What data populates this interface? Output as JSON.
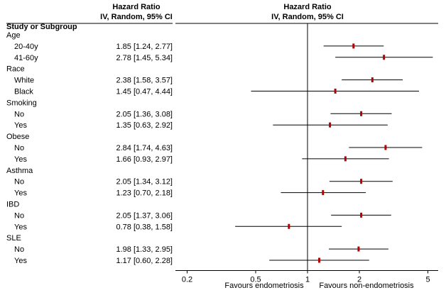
{
  "headers": {
    "study": "Study or Subgroup",
    "hr_title": "Hazard Ratio",
    "hr_sub": "IV, Random, 95% CI",
    "plot_title": "Hazard Ratio",
    "plot_sub": "IV, Random, 95% CI"
  },
  "colors": {
    "point": "#b40000",
    "line": "#000000",
    "axis": "#000000"
  },
  "chart_data": {
    "type": "forest",
    "x_scale": "log",
    "xlim": [
      0.15,
      6
    ],
    "null_line": 1,
    "x_ticks": [
      {
        "value": 0.2,
        "label": "0.2"
      },
      {
        "value": 0.5,
        "label": "0.5"
      },
      {
        "value": 1,
        "label": "1"
      },
      {
        "value": 2,
        "label": "2"
      },
      {
        "value": 5,
        "label": "5"
      }
    ],
    "favours_left": "Favours endometriosis",
    "favours_right": "Favours non-endometriosis",
    "groups": [
      {
        "name": "Age",
        "rows": [
          {
            "label": "20-40y",
            "ci_text": "1.85 [1.24, 2.77]",
            "hr": 1.85,
            "lo": 1.24,
            "hi": 2.77
          },
          {
            "label": "41-60y",
            "ci_text": "2.78 [1.45, 5.34]",
            "hr": 2.78,
            "lo": 1.45,
            "hi": 5.34
          }
        ]
      },
      {
        "name": "Race",
        "rows": [
          {
            "label": "White",
            "ci_text": "2.38 [1.58, 3.57]",
            "hr": 2.38,
            "lo": 1.58,
            "hi": 3.57
          },
          {
            "label": "Black",
            "ci_text": "1.45 [0.47, 4.44]",
            "hr": 1.45,
            "lo": 0.47,
            "hi": 4.44
          }
        ]
      },
      {
        "name": "Smoking",
        "rows": [
          {
            "label": "No",
            "ci_text": "2.05 [1.36, 3.08]",
            "hr": 2.05,
            "lo": 1.36,
            "hi": 3.08
          },
          {
            "label": "Yes",
            "ci_text": "1.35 [0.63, 2.92]",
            "hr": 1.35,
            "lo": 0.63,
            "hi": 2.92
          }
        ]
      },
      {
        "name": "Obese",
        "rows": [
          {
            "label": "No",
            "ci_text": "2.84 [1.74, 4.63]",
            "hr": 2.84,
            "lo": 1.74,
            "hi": 4.63
          },
          {
            "label": "Yes",
            "ci_text": "1.66 [0.93, 2.97]",
            "hr": 1.66,
            "lo": 0.93,
            "hi": 2.97
          }
        ]
      },
      {
        "name": "Asthma",
        "rows": [
          {
            "label": "No",
            "ci_text": "2.05 [1.34, 3.12]",
            "hr": 2.05,
            "lo": 1.34,
            "hi": 3.12
          },
          {
            "label": "Yes",
            "ci_text": "1.23 [0.70, 2.18]",
            "hr": 1.23,
            "lo": 0.7,
            "hi": 2.18
          }
        ]
      },
      {
        "name": "IBD",
        "rows": [
          {
            "label": "No",
            "ci_text": "2.05 [1.37, 3.06]",
            "hr": 2.05,
            "lo": 1.37,
            "hi": 3.06
          },
          {
            "label": "Yes",
            "ci_text": "0.78 [0.38, 1.58]",
            "hr": 0.78,
            "lo": 0.38,
            "hi": 1.58
          }
        ]
      },
      {
        "name": "SLE",
        "rows": [
          {
            "label": "No",
            "ci_text": "1.98 [1.33, 2.95]",
            "hr": 1.98,
            "lo": 1.33,
            "hi": 2.95
          },
          {
            "label": "Yes",
            "ci_text": "1.17 [0.60, 2.28]",
            "hr": 1.17,
            "lo": 0.6,
            "hi": 2.28
          }
        ]
      }
    ]
  }
}
